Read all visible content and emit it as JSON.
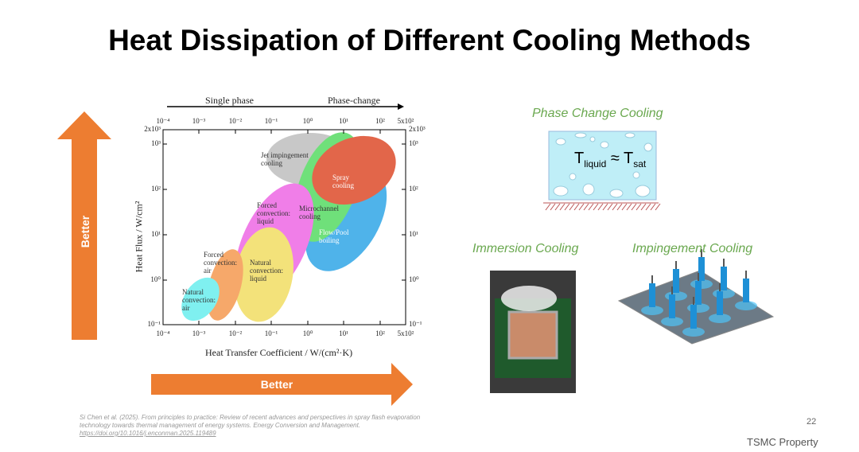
{
  "title": "Heat Dissipation of Different Cooling Methods",
  "figure": {
    "top_labels": [
      "Single phase",
      "Phase-change"
    ],
    "x_axis_label": "Heat Transfer Coefficient / W/(cm²·K)",
    "y_axis_label": "Heat Flux / W/cm²",
    "x_ticks": [
      "10⁻⁴",
      "10⁻³",
      "10⁻²",
      "10⁻¹",
      "10⁰",
      "10¹",
      "10²",
      "5x10²"
    ],
    "y_ticks": [
      "2x10³",
      "10³",
      "10²",
      "10¹",
      "10⁰",
      "10⁻¹"
    ],
    "regions": [
      "Jet impingement cooling",
      "Spray cooling",
      "Microchannel cooling",
      "Flow/Pool boiling",
      "Forced convection: liquid",
      "Natural convection: liquid",
      "Forced convection: air",
      "Natural convection: air"
    ]
  },
  "arrows": {
    "vertical": "Better",
    "horizontal": "Better"
  },
  "panels": [
    {
      "title": "Phase Change Cooling"
    },
    {
      "title": "Immersion Cooling"
    },
    {
      "title": "Impingement Cooling"
    }
  ],
  "formula": {
    "lhs": "T",
    "lhs_sub": "liquid",
    "op": "≈",
    "rhs": "T",
    "rhs_sub": "sat"
  },
  "citation": [
    "Si Chen et al. (2025). From principles to practice: Review of recent advances and perspectives in spray flash evaporation",
    "technology towards thermal management of energy systems. Energy Conversion and Management.",
    "https://doi.org/10.1016/j.enconman.2025.119489"
  ],
  "page_number": "22",
  "footer": "TSMC Property"
}
